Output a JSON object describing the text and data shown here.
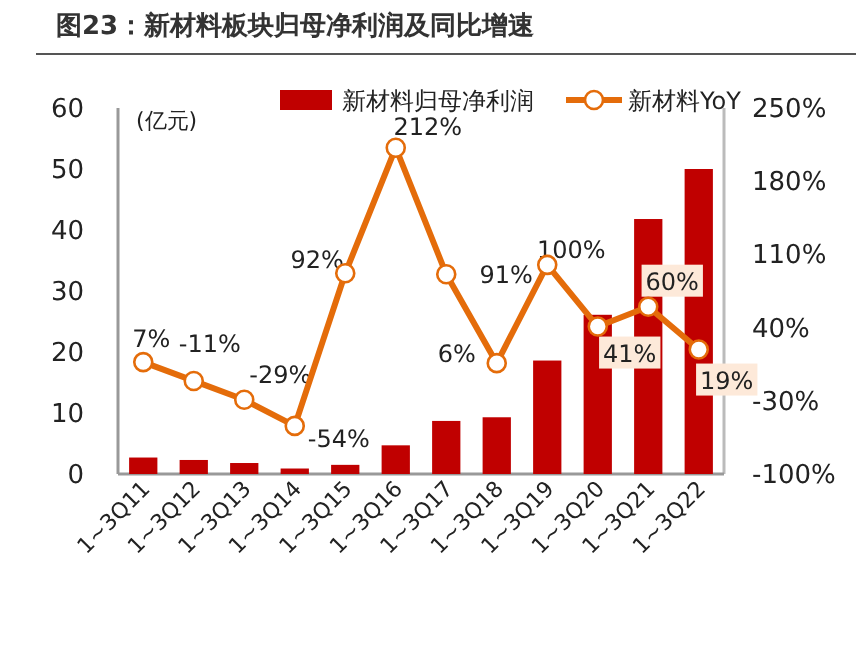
{
  "chart_data": {
    "type": "bar",
    "title": "图23：新材料板块归母净利润及同比增速",
    "ylabel": "(亿元)",
    "categories": [
      "1~3Q11",
      "1~3Q12",
      "1~3Q13",
      "1~3Q14",
      "1~3Q15",
      "1~3Q16",
      "1~3Q17",
      "1~3Q18",
      "1~3Q19",
      "1~3Q20",
      "1~3Q21",
      "1~3Q22"
    ],
    "series": [
      {
        "name": "新材料归母净利润",
        "color": "#c00000",
        "values": [
          2.7,
          2.3,
          1.8,
          0.9,
          1.5,
          4.7,
          8.7,
          9.3,
          18.6,
          26.1,
          41.8,
          50.0
        ]
      },
      {
        "name": "新材料YoY",
        "type": "line",
        "axis": "y2",
        "color": "#e46c0a",
        "marker": "circle",
        "values": [
          7,
          -11,
          -29,
          -54,
          92,
          212,
          91,
          6,
          100,
          41,
          60,
          19
        ],
        "value_labels": [
          "7%",
          "-11%",
          "-29%",
          "-54%",
          "92%",
          "212%",
          "91%",
          "6%",
          "100%",
          "41%",
          "60%",
          "19%"
        ]
      }
    ],
    "ylim": [
      0,
      60
    ],
    "yticks": [
      0,
      10,
      20,
      30,
      40,
      50,
      60
    ],
    "y2lim": [
      -100,
      250
    ],
    "y2ticks": [
      {
        "value": -100,
        "label": "-100%"
      },
      {
        "value": -30,
        "label": "-30%"
      },
      {
        "value": 40,
        "label": "40%"
      },
      {
        "value": 110,
        "label": "110%"
      },
      {
        "value": 180,
        "label": "180%"
      },
      {
        "value": 250,
        "label": "250%"
      }
    ],
    "legend": "top",
    "grid": false
  }
}
